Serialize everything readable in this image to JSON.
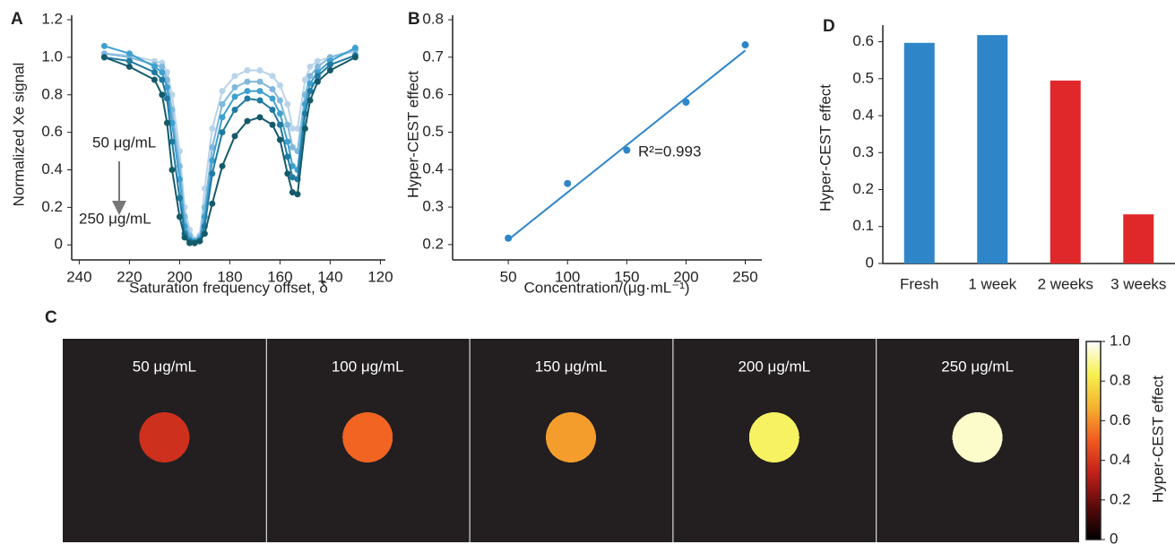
{
  "chart_data": [
    {
      "type": "line",
      "panel": "A",
      "xlabel": "Saturation frequency offset, δ",
      "ylabel": "Normalized Xe signal",
      "annotations": [
        "50 μg/mL",
        "250 μg/mL"
      ],
      "x": [
        230,
        220,
        210,
        207,
        205,
        203,
        200,
        198,
        196,
        194,
        192,
        190,
        187,
        183,
        178,
        173,
        168,
        163,
        160,
        157,
        155,
        153,
        150,
        148,
        145,
        140,
        130
      ],
      "series": [
        {
          "color": "#b9d4ea",
          "values": [
            1.02,
            1.01,
            0.98,
            0.97,
            0.92,
            0.8,
            0.5,
            0.2,
            0.08,
            0.03,
            0.05,
            0.3,
            0.62,
            0.82,
            0.9,
            0.93,
            0.93,
            0.9,
            0.85,
            0.75,
            0.62,
            0.62,
            0.88,
            0.95,
            0.98,
            1.0,
            1.03
          ]
        },
        {
          "color": "#7fb8dc",
          "values": [
            1.02,
            1.0,
            0.96,
            0.95,
            0.88,
            0.72,
            0.42,
            0.15,
            0.05,
            0.02,
            0.04,
            0.2,
            0.52,
            0.75,
            0.84,
            0.87,
            0.87,
            0.83,
            0.77,
            0.64,
            0.52,
            0.5,
            0.8,
            0.9,
            0.95,
            1.0,
            1.04
          ]
        },
        {
          "color": "#3ea0cf",
          "values": [
            1.06,
            1.02,
            0.95,
            0.92,
            0.84,
            0.65,
            0.35,
            0.1,
            0.03,
            0.02,
            0.03,
            0.15,
            0.45,
            0.68,
            0.79,
            0.82,
            0.82,
            0.78,
            0.7,
            0.55,
            0.42,
            0.4,
            0.75,
            0.86,
            0.92,
            0.98,
            1.05
          ]
        },
        {
          "color": "#1f7aa0",
          "values": [
            1.0,
            0.98,
            0.92,
            0.88,
            0.78,
            0.55,
            0.25,
            0.06,
            0.02,
            0.01,
            0.02,
            0.1,
            0.38,
            0.6,
            0.72,
            0.78,
            0.77,
            0.72,
            0.64,
            0.47,
            0.36,
            0.35,
            0.7,
            0.82,
            0.9,
            0.96,
            1.01
          ]
        },
        {
          "color": "#145a6b",
          "values": [
            1.0,
            0.95,
            0.88,
            0.8,
            0.65,
            0.4,
            0.15,
            0.04,
            0.01,
            0.01,
            0.02,
            0.06,
            0.22,
            0.42,
            0.58,
            0.66,
            0.68,
            0.64,
            0.56,
            0.38,
            0.28,
            0.27,
            0.62,
            0.77,
            0.87,
            0.93,
            1.0
          ]
        }
      ],
      "xlim": [
        243,
        118
      ],
      "xticks": [
        240,
        220,
        200,
        180,
        160,
        140,
        120
      ],
      "ylim": [
        -0.08,
        1.224
      ],
      "yticks": [
        0,
        0.2,
        0.4,
        0.6,
        0.8,
        {
          "value": 1,
          "label": "1.0"
        },
        1.2
      ]
    },
    {
      "type": "scatter",
      "panel": "B",
      "xlabel": "Concentration/(μg·mL⁻¹)",
      "ylabel": "Hyper-CEST effect",
      "annotations": [
        "R²=0.993"
      ],
      "color": "#2e86c8",
      "x": [
        50,
        100,
        150,
        200,
        250
      ],
      "values": [
        0.217,
        0.363,
        0.452,
        0.58,
        0.733
      ],
      "fit": {
        "x": [
          50,
          250
        ],
        "values": [
          0.213,
          0.718
        ]
      },
      "xlim": [
        3,
        264
      ],
      "xticks": [
        50,
        100,
        150,
        200,
        250
      ],
      "ylim": [
        0.159,
        0.812
      ],
      "yticks": [
        0.2,
        0.3,
        0.4,
        0.5,
        0.6,
        0.7,
        0.8
      ]
    },
    {
      "type": "bar",
      "panel": "D",
      "ylabel": "Hyper-CEST effect",
      "categories": [
        "Fresh",
        "1 week",
        "2 weeks",
        "3 weeks"
      ],
      "values": [
        0.597,
        0.618,
        0.495,
        0.133
      ],
      "colors": [
        "#2e86c8",
        "#2e86c8",
        "#e0282a",
        "#e0282a"
      ],
      "ylim": [
        0,
        0.645
      ],
      "yticks": [
        0,
        0.1,
        0.2,
        0.3,
        0.4,
        0.5,
        0.6
      ]
    },
    {
      "type": "image",
      "panel": "C",
      "categories": [
        "50 μg/mL",
        "100 μg/mL",
        "150 μg/mL",
        "200 μg/mL",
        "250 μg/mL"
      ],
      "values": [
        0.38,
        0.52,
        0.63,
        0.85,
        0.95
      ],
      "colormap": [
        "#000000",
        "#5a0a0a",
        "#c0201a",
        "#f05a20",
        "#f5b030",
        "#f5f050",
        "#ffffff"
      ],
      "colorbar": {
        "label": "Hyper-CEST effect",
        "lim": [
          0,
          1
        ],
        "ticks": [
          0,
          0.2,
          0.4,
          0.6,
          0.8,
          {
            "value": 1,
            "label": "1.0"
          }
        ]
      }
    }
  ]
}
